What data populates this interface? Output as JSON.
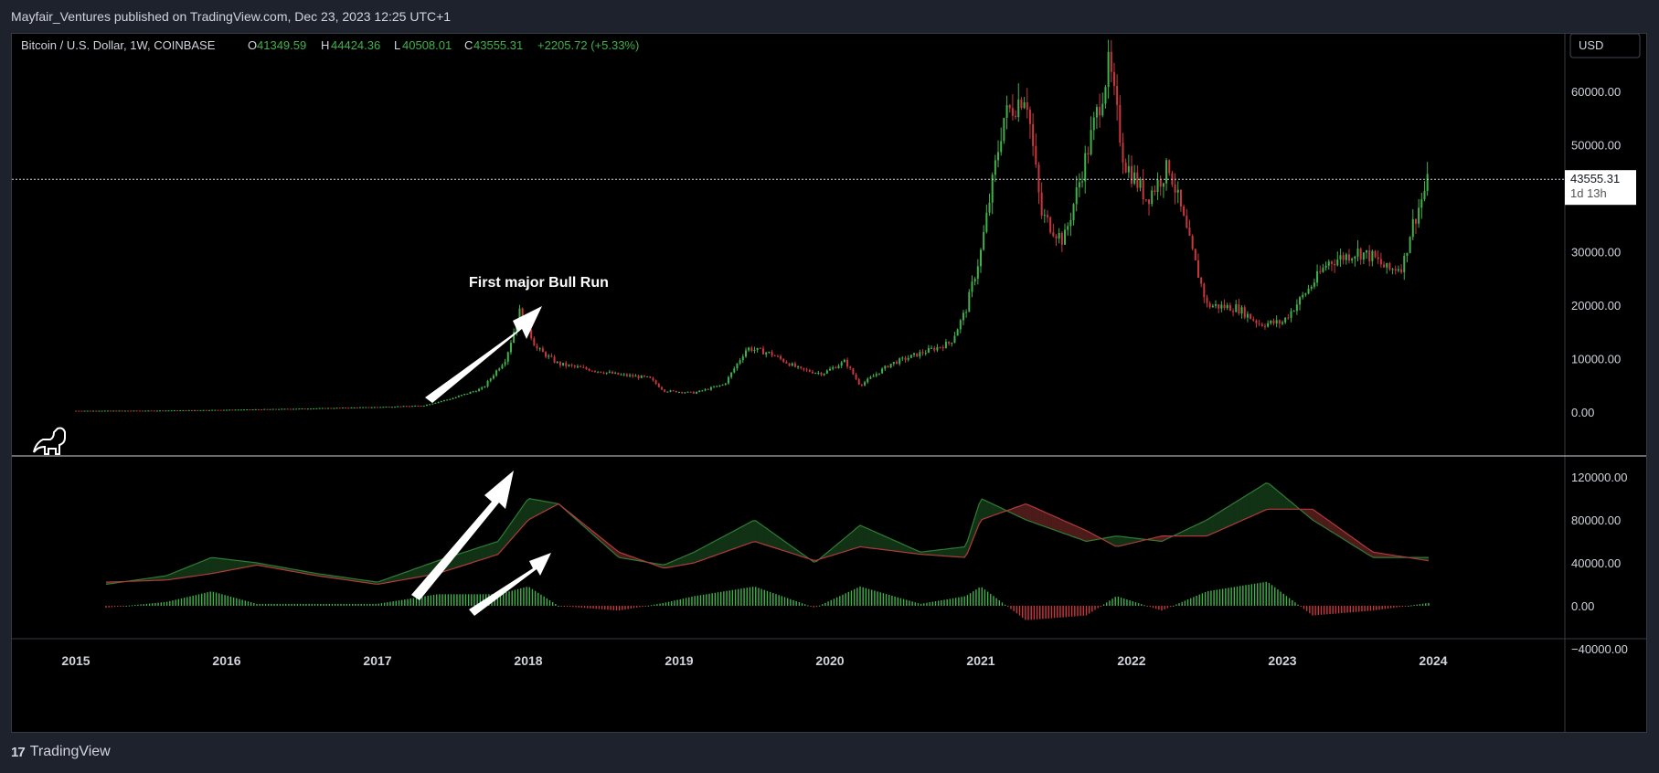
{
  "header": {
    "published_text": "Mayfair_Ventures published on TradingView.com, Dec 23, 2023 12:25 UTC+1"
  },
  "legend": {
    "symbol": "Bitcoin / U.S. Dollar, 1W, COINBASE",
    "o_label": "O",
    "o_value": "41349.59",
    "h_label": "H",
    "h_value": "44424.36",
    "l_label": "L",
    "l_value": "40508.01",
    "c_label": "C",
    "c_value": "43555.31",
    "change": "+2205.72 (+5.33%)"
  },
  "currency_button": "USD",
  "price_tag": {
    "price": "43555.31",
    "countdown": "1d 13h"
  },
  "annotation": {
    "text": "First major Bull Run"
  },
  "footer": {
    "brand": "TradingView",
    "logo_text": "17"
  },
  "colors": {
    "up": "#26a69a",
    "green": "#3fb24a",
    "down": "#ef5350",
    "red_candle": "#c9363d",
    "background": "#000000",
    "text": "#d1d4dc"
  },
  "chart_data": [
    {
      "type": "candlestick",
      "title": "Bitcoin / U.S. Dollar, 1W, COINBASE",
      "y_ticks": [
        "60000.00",
        "50000.00",
        "40000.00",
        "30000.00",
        "20000.00",
        "10000.00",
        "0.00"
      ],
      "ylim": [
        0,
        64000
      ],
      "x_ticks": [
        "2015",
        "2016",
        "2017",
        "2018",
        "2019",
        "2020",
        "2021",
        "2022",
        "2023",
        "2024"
      ],
      "price_path": [
        [
          "2015.0",
          250
        ],
        [
          "2015.5",
          270
        ],
        [
          "2016.0",
          430
        ],
        [
          "2016.5",
          650
        ],
        [
          "2017.0",
          950
        ],
        [
          "2017.3",
          1200
        ],
        [
          "2017.5",
          2600
        ],
        [
          "2017.7",
          4500
        ],
        [
          "2017.85",
          10000
        ],
        [
          "2017.95",
          19500
        ],
        [
          "2018.05",
          12000
        ],
        [
          "2018.2",
          9000
        ],
        [
          "2018.4",
          8000
        ],
        [
          "2018.6",
          7000
        ],
        [
          "2018.8",
          6400
        ],
        [
          "2018.9",
          4000
        ],
        [
          "2019.1",
          3600
        ],
        [
          "2019.3",
          5200
        ],
        [
          "2019.45",
          12000
        ],
        [
          "2019.6",
          11000
        ],
        [
          "2019.8",
          8000
        ],
        [
          "2019.95",
          7200
        ],
        [
          "2020.1",
          9500
        ],
        [
          "2020.2",
          5000
        ],
        [
          "2020.4",
          9000
        ],
        [
          "2020.6",
          11000
        ],
        [
          "2020.8",
          13000
        ],
        [
          "2020.9",
          19000
        ],
        [
          "2021.0",
          30000
        ],
        [
          "2021.15",
          55000
        ],
        [
          "2021.3",
          60000
        ],
        [
          "2021.4",
          37000
        ],
        [
          "2021.55",
          32000
        ],
        [
          "2021.7",
          48000
        ],
        [
          "2021.85",
          65000
        ],
        [
          "2021.95",
          47000
        ],
        [
          "2022.1",
          40000
        ],
        [
          "2022.25",
          46000
        ],
        [
          "2022.4",
          30000
        ],
        [
          "2022.5",
          20000
        ],
        [
          "2022.7",
          19500
        ],
        [
          "2022.85",
          16500
        ],
        [
          "2023.0",
          16800
        ],
        [
          "2023.2",
          24000
        ],
        [
          "2023.3",
          28000
        ],
        [
          "2023.5",
          30000
        ],
        [
          "2023.6",
          29000
        ],
        [
          "2023.7",
          26500
        ],
        [
          "2023.8",
          27500
        ],
        [
          "2023.85",
          34000
        ],
        [
          "2023.97",
          43555.31
        ]
      ]
    },
    {
      "type": "area",
      "y_ticks": [
        "120000.00",
        "80000.00",
        "40000.00",
        "0.00",
        "−40000.00"
      ],
      "ylim": [
        -40000,
        120000
      ],
      "series": [
        {
          "values": [
            [
              "2015.2",
              20000
            ],
            [
              "2015.6",
              28000
            ],
            [
              "2015.9",
              45000
            ],
            [
              "2016.2",
              40000
            ],
            [
              "2016.6",
              30000
            ],
            [
              "2017.0",
              22000
            ],
            [
              "2017.4",
              42000
            ],
            [
              "2017.8",
              60000
            ],
            [
              "2018.0",
              100000
            ],
            [
              "2018.2",
              95000
            ],
            [
              "2018.6",
              45000
            ],
            [
              "2018.9",
              38000
            ],
            [
              "2019.1",
              50000
            ],
            [
              "2019.5",
              80000
            ],
            [
              "2019.9",
              40000
            ],
            [
              "2020.2",
              75000
            ],
            [
              "2020.6",
              50000
            ],
            [
              "2020.9",
              55000
            ],
            [
              "2021.0",
              100000
            ],
            [
              "2021.3",
              80000
            ],
            [
              "2021.7",
              60000
            ],
            [
              "2021.9",
              65000
            ],
            [
              "2022.2",
              60000
            ],
            [
              "2022.5",
              80000
            ],
            [
              "2022.9",
              115000
            ],
            [
              "2023.2",
              80000
            ],
            [
              "2023.6",
              45000
            ],
            [
              "2023.97",
              45000
            ]
          ]
        },
        {
          "values": [
            [
              "2015.2",
              22000
            ],
            [
              "2015.6",
              24000
            ],
            [
              "2015.9",
              30000
            ],
            [
              "2016.2",
              38000
            ],
            [
              "2016.6",
              28000
            ],
            [
              "2017.0",
              20000
            ],
            [
              "2017.4",
              30000
            ],
            [
              "2017.8",
              48000
            ],
            [
              "2018.0",
              80000
            ],
            [
              "2018.2",
              95000
            ],
            [
              "2018.6",
              50000
            ],
            [
              "2018.9",
              35000
            ],
            [
              "2019.1",
              40000
            ],
            [
              "2019.5",
              60000
            ],
            [
              "2019.9",
              42000
            ],
            [
              "2020.2",
              55000
            ],
            [
              "2020.6",
              48000
            ],
            [
              "2020.9",
              45000
            ],
            [
              "2021.0",
              80000
            ],
            [
              "2021.3",
              95000
            ],
            [
              "2021.7",
              70000
            ],
            [
              "2021.9",
              55000
            ],
            [
              "2022.2",
              65000
            ],
            [
              "2022.5",
              65000
            ],
            [
              "2022.9",
              90000
            ],
            [
              "2023.2",
              90000
            ],
            [
              "2023.6",
              50000
            ],
            [
              "2023.97",
              42000
            ]
          ]
        }
      ]
    }
  ]
}
